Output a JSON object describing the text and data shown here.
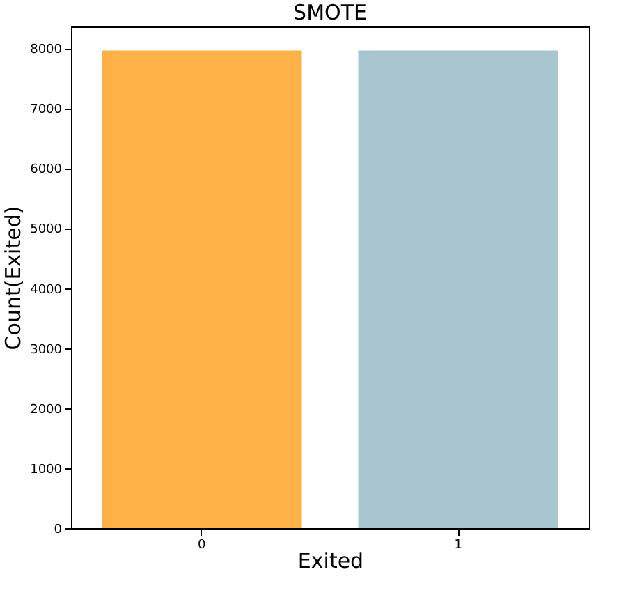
{
  "chart_data": {
    "type": "bar",
    "title": "SMOTE",
    "xlabel": "Exited",
    "ylabel": "Count(Exited)",
    "categories": [
      "0",
      "1"
    ],
    "values": [
      7960,
      7960
    ],
    "colors": [
      "#fdb147",
      "#a9c5d0"
    ],
    "ylim": [
      0,
      8360
    ],
    "yticks": [
      0,
      1000,
      2000,
      3000,
      4000,
      5000,
      6000,
      7000,
      8000
    ],
    "grid": false
  }
}
